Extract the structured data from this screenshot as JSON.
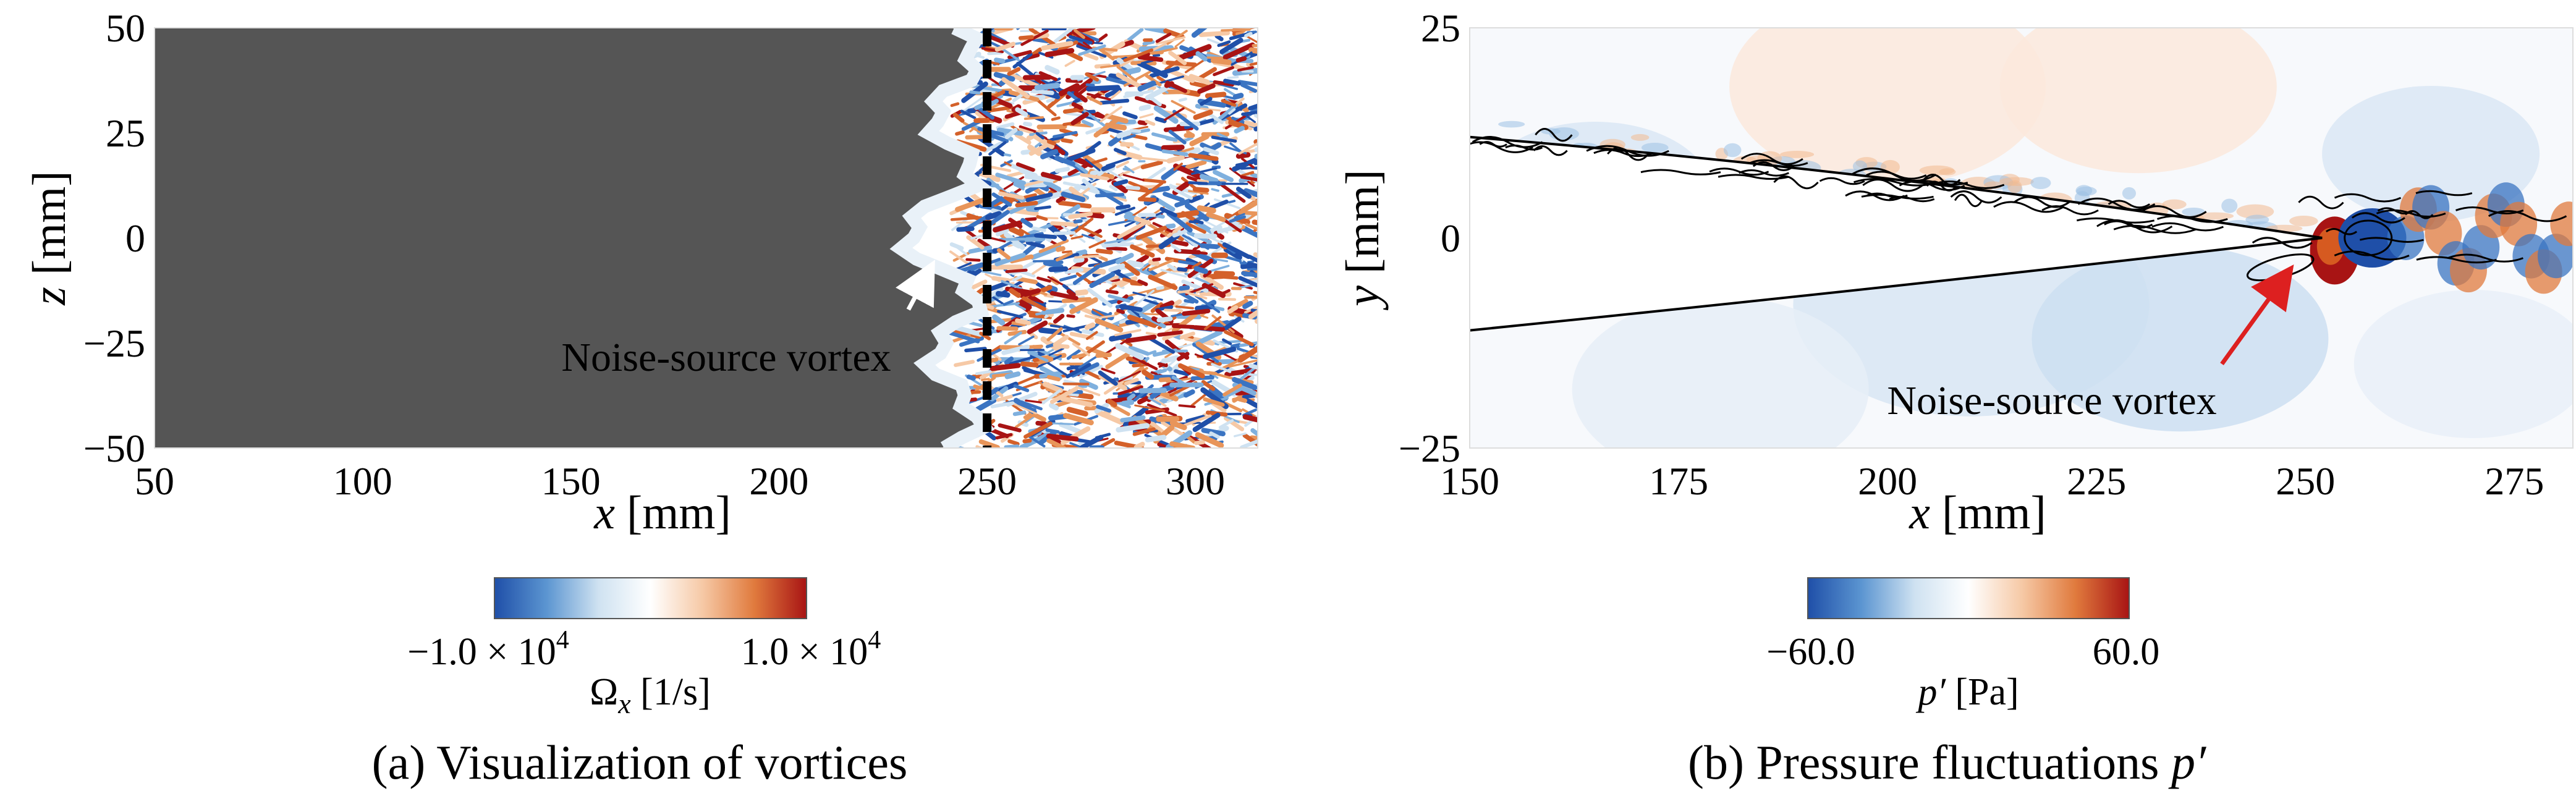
{
  "panels": [
    {
      "caption_tag": "(a)",
      "caption_text": " Visualization of vortices",
      "plot_bg": "#555555",
      "annotation": {
        "text": "Noise-source vortex",
        "color": "#ffffff"
      },
      "colorbar": {
        "min_label": "−1.0 × 10",
        "min_exp": "4",
        "max_label": "1.0 × 10",
        "max_exp": "4",
        "quantity_symbol": "Ω",
        "quantity_sub": "x",
        "unit": " [1/s]",
        "colors": [
          "#1f4fa8",
          "#5b95d1",
          "#cfe2f1",
          "#ffffff",
          "#f6c9a6",
          "#e07a3d",
          "#a81414"
        ]
      }
    },
    {
      "caption_tag": "(b)",
      "caption_text": " Pressure fluctuations ",
      "caption_symbol": "p′",
      "annotation": {
        "text": "Noise-source vortex",
        "color": "#dd2020"
      },
      "colorbar": {
        "min_label": "−60.0",
        "max_label": "60.0",
        "quantity_symbol": "p′",
        "unit": " [Pa]",
        "colors": [
          "#1f4fa8",
          "#5b95d1",
          "#cfe2f1",
          "#ffffff",
          "#f6c9a6",
          "#e07a3d",
          "#a81414"
        ]
      }
    }
  ],
  "chart_data": [
    {
      "type": "heatmap",
      "title": "",
      "xlabel": "x [mm]",
      "ylabel": "z [mm]",
      "x_unit": "[mm]",
      "y_unit": "[mm]",
      "x_var": "x",
      "y_var": "z",
      "xlim": [
        50,
        315
      ],
      "ylim": [
        -50,
        50
      ],
      "xticks": [
        50,
        100,
        150,
        200,
        250,
        300
      ],
      "yticks": [
        50,
        25,
        0,
        -25,
        -50
      ],
      "ytick_labels": [
        "50",
        "25",
        "0",
        "−25",
        "−50"
      ],
      "colorbar_range": [
        -10000,
        10000
      ],
      "trailing_edge_line_x": 250,
      "annotation_arrow": {
        "from": [
          240,
          -20
        ],
        "to": [
          238,
          -7
        ]
      }
    },
    {
      "type": "heatmap",
      "title": "",
      "xlabel": "x [mm]",
      "ylabel": "y [mm]",
      "x_unit": "[mm]",
      "y_unit": "[mm]",
      "x_var": "x",
      "y_var": "y",
      "xlim": [
        150,
        282
      ],
      "ylim": [
        -25,
        25
      ],
      "xticks": [
        150,
        175,
        200,
        225,
        250,
        275
      ],
      "yticks": [
        25,
        0,
        -25
      ],
      "ytick_labels": [
        "25",
        "0",
        "−25"
      ],
      "colorbar_range": [
        -60,
        60
      ],
      "airfoil_tip": [
        252,
        0
      ],
      "airfoil_upper_start": [
        150,
        12
      ],
      "airfoil_lower_start": [
        150,
        -11
      ],
      "annotation_arrow": {
        "from": [
          240,
          -15
        ],
        "to": [
          248,
          -4
        ]
      }
    }
  ]
}
